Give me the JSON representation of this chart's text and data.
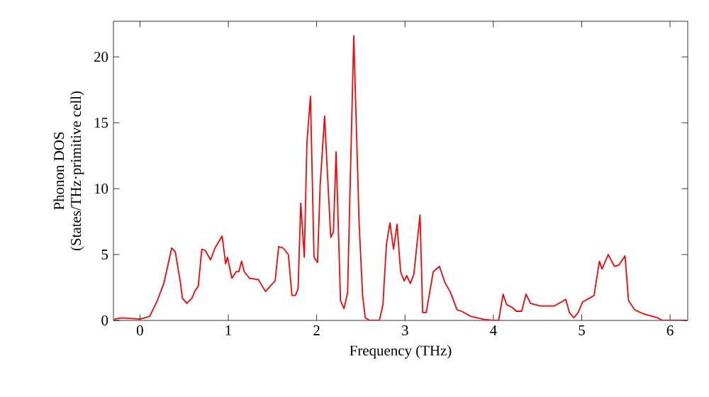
{
  "chart_data": {
    "type": "line",
    "xlabel": "Frequency (THz)",
    "ylabel": "Phonon DOS\n(States/THz·primitive cell)",
    "xlim": [
      -0.3,
      6.2
    ],
    "ylim": [
      0,
      22.7
    ],
    "xticks": [
      0,
      1,
      2,
      3,
      4,
      5,
      6
    ],
    "yticks": [
      0,
      5,
      10,
      15,
      20
    ],
    "grid": false,
    "marker": "none",
    "line_style": "solid",
    "series": [
      {
        "color": "#ff0000",
        "x": [
          -0.29,
          -0.21,
          0.0,
          0.11,
          0.19,
          0.27,
          0.36,
          0.4,
          0.46,
          0.48,
          0.53,
          0.59,
          0.62,
          0.66,
          0.7,
          0.74,
          0.8,
          0.85,
          0.93,
          0.97,
          0.99,
          1.04,
          1.09,
          1.12,
          1.15,
          1.18,
          1.24,
          1.34,
          1.42,
          1.53,
          1.57,
          1.62,
          1.68,
          1.72,
          1.76,
          1.79,
          1.82,
          1.86,
          1.89,
          1.93,
          1.97,
          2.01,
          2.04,
          2.09,
          2.12,
          2.16,
          2.19,
          2.22,
          2.27,
          2.31,
          2.35,
          2.42,
          2.48,
          2.52,
          2.55,
          2.6,
          2.71,
          2.75,
          2.79,
          2.83,
          2.87,
          2.91,
          2.95,
          2.99,
          3.02,
          3.06,
          3.1,
          3.17,
          3.2,
          3.24,
          3.32,
          3.39,
          3.45,
          3.51,
          3.59,
          3.64,
          3.75,
          3.88,
          3.99,
          4.06,
          4.11,
          4.15,
          4.21,
          4.26,
          4.32,
          4.37,
          4.42,
          4.53,
          4.69,
          4.77,
          4.82,
          4.86,
          4.91,
          4.96,
          5.01,
          5.09,
          5.14,
          5.2,
          5.23,
          5.3,
          5.37,
          5.42,
          5.49,
          5.53,
          5.6,
          5.7,
          5.86,
          5.91,
          6.2
        ],
        "values": [
          0.1,
          0.2,
          0.1,
          0.3,
          1.4,
          2.8,
          5.5,
          5.2,
          2.8,
          1.7,
          1.3,
          1.7,
          2.2,
          2.6,
          5.4,
          5.3,
          4.6,
          5.5,
          6.4,
          4.3,
          4.8,
          3.2,
          3.7,
          3.7,
          4.5,
          3.7,
          3.2,
          3.1,
          2.2,
          3.0,
          5.6,
          5.5,
          5.0,
          1.9,
          1.9,
          2.4,
          8.9,
          4.8,
          13.5,
          17.0,
          4.8,
          4.4,
          10.3,
          15.5,
          11.4,
          6.3,
          6.7,
          12.8,
          1.5,
          0.9,
          2.1,
          21.6,
          7.5,
          1.9,
          0.2,
          0.0,
          0.0,
          1.2,
          5.8,
          7.4,
          5.4,
          7.3,
          3.7,
          3.0,
          3.4,
          2.8,
          3.5,
          8.0,
          0.6,
          0.6,
          3.7,
          4.1,
          2.9,
          2.2,
          0.8,
          0.7,
          0.3,
          0.1,
          0.0,
          0.0,
          2.0,
          1.2,
          1.0,
          0.7,
          0.7,
          2.0,
          1.3,
          1.1,
          1.1,
          1.4,
          1.6,
          0.6,
          0.2,
          0.6,
          1.4,
          1.7,
          1.9,
          4.5,
          3.9,
          5.0,
          4.1,
          4.2,
          4.9,
          1.5,
          0.8,
          0.5,
          0.2,
          0.0,
          0.0
        ]
      }
    ]
  }
}
